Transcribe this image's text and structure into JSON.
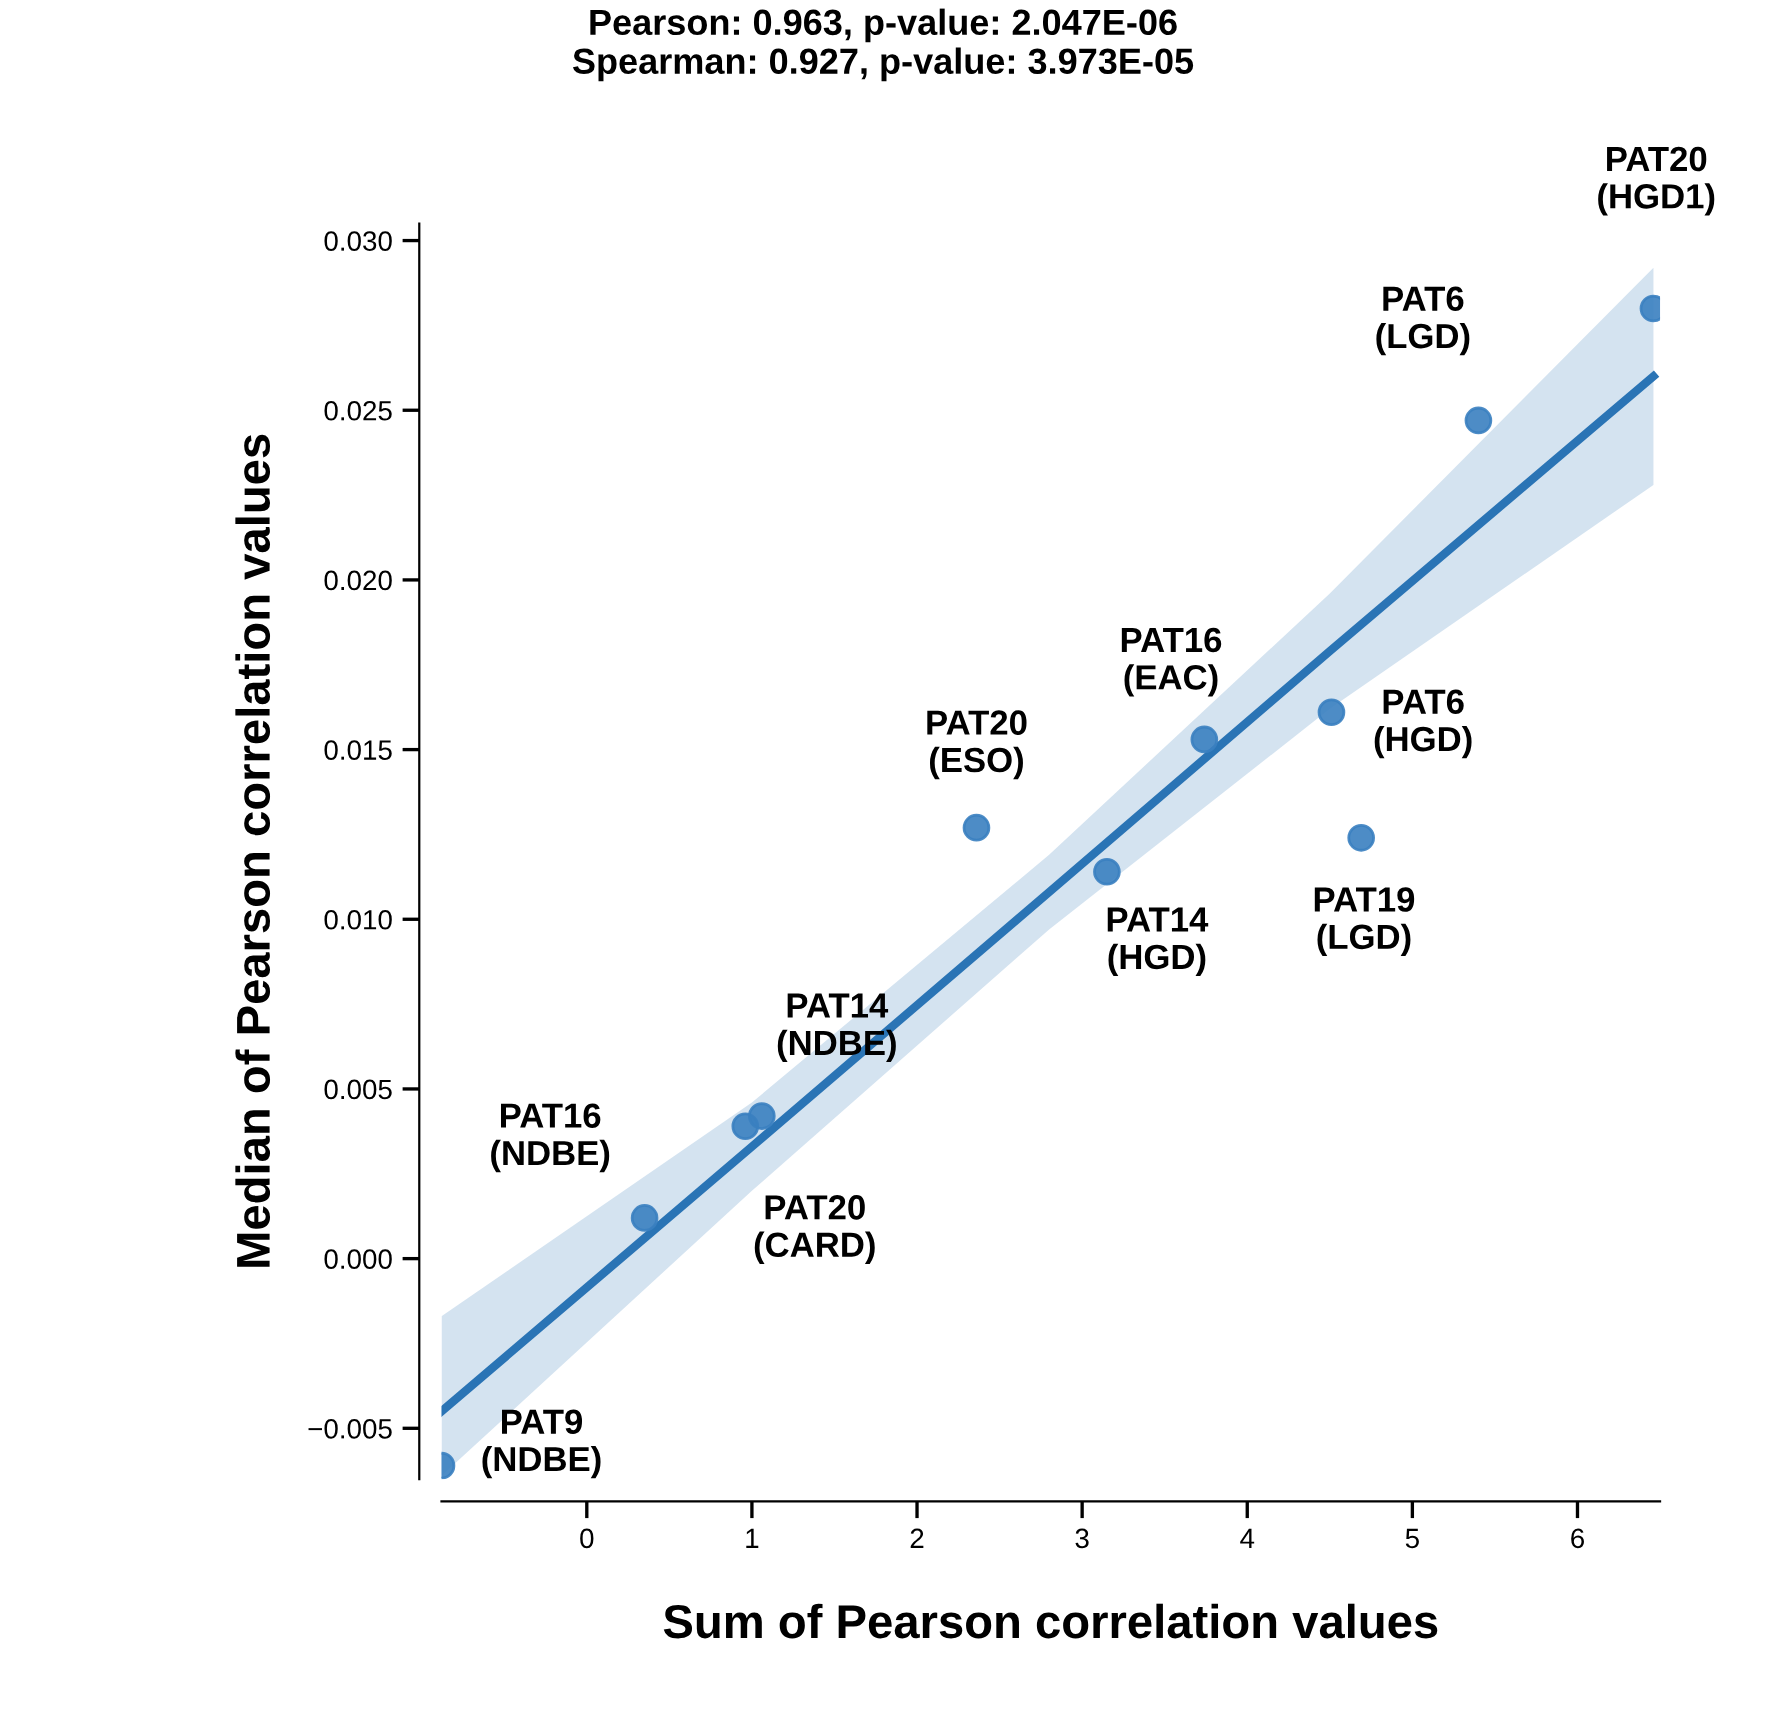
{
  "chart_data": {
    "type": "scatter",
    "title": "Pearson: 0.963, p-value: 2.047E-06\nSpearman: 0.927, p-value: 3.973E-05",
    "xlabel": "Sum of Pearson correlation values",
    "ylabel": "Median of Pearson correlation values",
    "series": [
      {
        "color": "#3a80c0",
        "x": [
          -0.88,
          0.35,
          0.96,
          1.06,
          2.36,
          3.15,
          3.74,
          4.51,
          4.69,
          5.4,
          6.46
        ],
        "values": [
          -0.0061,
          0.0012,
          0.0039,
          0.0042,
          0.0127,
          0.0114,
          0.0153,
          0.0161,
          0.0124,
          0.0247,
          0.028
        ]
      },
      {
        "type": "line",
        "color": "#2a74b5",
        "x": [
          -0.88,
          1,
          2.8,
          4.5,
          6.46
        ],
        "values": [
          -0.0045,
          0.0033,
          0.0108,
          0.0179,
          0.026
        ],
        "lower": [
          -0.0064,
          0.002,
          0.0097,
          0.0162,
          0.0228
        ],
        "upper": [
          -0.0017,
          0.0046,
          0.0119,
          0.0196,
          0.0292
        ]
      }
    ],
    "annotations": [
      {
        "text": "PAT9\n(NDBE)",
        "x": -0.88,
        "y": -0.0061
      },
      {
        "text": "PAT16\n(NDBE)",
        "x": 0.35,
        "y": 0.0012
      },
      {
        "text": "PAT20\n(CARD)",
        "x": 0.96,
        "y": 0.0039
      },
      {
        "text": "PAT14\n(NDBE)",
        "x": 1.06,
        "y": 0.0042
      },
      {
        "text": "PAT20\n(ESO)",
        "x": 2.36,
        "y": 0.0127
      },
      {
        "text": "PAT14\n(HGD)",
        "x": 3.15,
        "y": 0.0114
      },
      {
        "text": "PAT16\n(EAC)",
        "x": 3.74,
        "y": 0.0153
      },
      {
        "text": "PAT6\n(HGD)",
        "x": 4.51,
        "y": 0.0161
      },
      {
        "text": "PAT19\n(LGD)",
        "x": 4.69,
        "y": 0.0124
      },
      {
        "text": "PAT6\n(LGD)",
        "x": 5.4,
        "y": 0.0247
      },
      {
        "text": "PAT20\n(HGD1)",
        "x": 6.46,
        "y": 0.028
      }
    ],
    "xlim": [
      -0.88,
      6.5
    ],
    "ylim": [
      -0.0065,
      0.0305
    ],
    "xticks": [
      0,
      1,
      2,
      3,
      4,
      5,
      6
    ],
    "yticks": [
      {
        "value": -0.005,
        "label": "−0.005"
      },
      {
        "value": 0.0,
        "label": "0.000"
      },
      {
        "value": 0.005,
        "label": "0.005"
      },
      {
        "value": 0.01,
        "label": "0.010"
      },
      {
        "value": 0.015,
        "label": "0.015"
      },
      {
        "value": 0.02,
        "label": "0.020"
      },
      {
        "value": 0.025,
        "label": "0.025"
      },
      {
        "value": 0.03,
        "label": "0.030"
      }
    ],
    "grid": false,
    "legend": false
  }
}
